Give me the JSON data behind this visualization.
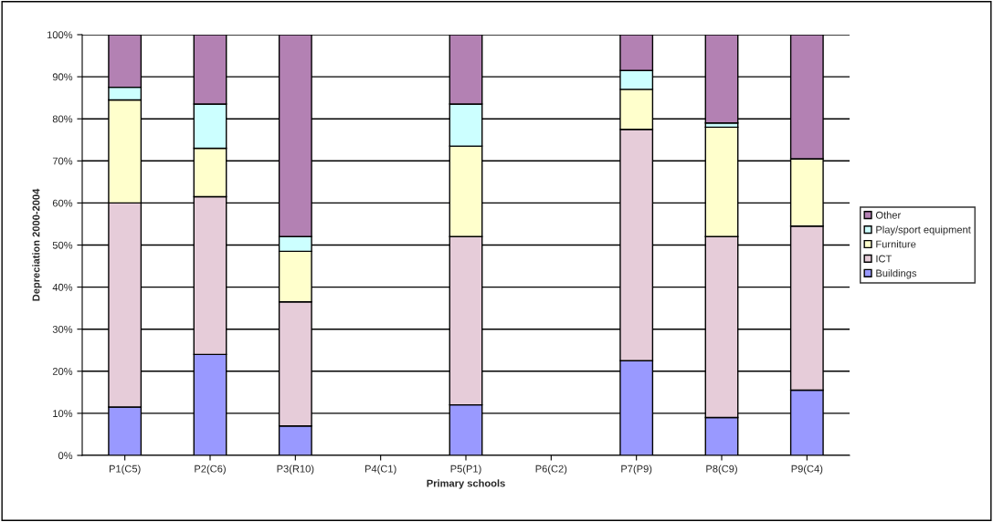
{
  "chart_data": {
    "type": "bar",
    "stacked": true,
    "xlabel": "Primary schools",
    "ylabel": "Depreciation 2000-2004",
    "categories": [
      "P1(C5)",
      "P2(C6)",
      "P3(R10)",
      "P4(C1)",
      "P5(P1)",
      "P6(C2)",
      "P7(P9)",
      "P8(C9)",
      "P9(C4)"
    ],
    "series": [
      {
        "name": "Buildings",
        "color": "#9999ff",
        "values": [
          11.5,
          24,
          7,
          null,
          12,
          null,
          22.5,
          9,
          15.5
        ]
      },
      {
        "name": "ICT",
        "color": "#e6ccd9",
        "values": [
          48.5,
          37.5,
          29.5,
          null,
          40,
          null,
          55,
          43,
          39
        ]
      },
      {
        "name": "Furniture",
        "color": "#ffffcc",
        "values": [
          24.5,
          11.5,
          12,
          null,
          21.5,
          null,
          9.5,
          26,
          16
        ]
      },
      {
        "name": "Play/sport equipment",
        "color": "#ccffff",
        "values": [
          3,
          10.5,
          3.5,
          null,
          10,
          null,
          4.5,
          1,
          null
        ]
      },
      {
        "name": "Other",
        "color": "#b381b3",
        "values": [
          12.5,
          16.5,
          48,
          null,
          16.5,
          null,
          8.5,
          21,
          29.5
        ]
      }
    ],
    "ylim": [
      0,
      100
    ],
    "yticks": [
      {
        "value": 0,
        "label": "0%"
      },
      {
        "value": 10,
        "label": "10%"
      },
      {
        "value": 20,
        "label": "20%"
      },
      {
        "value": 30,
        "label": "30%"
      },
      {
        "value": 40,
        "label": "40%"
      },
      {
        "value": 50,
        "label": "50%"
      },
      {
        "value": 60,
        "label": "60%"
      },
      {
        "value": 70,
        "label": "70%"
      },
      {
        "value": 80,
        "label": "80%"
      },
      {
        "value": 90,
        "label": "90%"
      },
      {
        "value": 100,
        "label": "100%"
      }
    ],
    "grid": "y",
    "legend": "right"
  }
}
